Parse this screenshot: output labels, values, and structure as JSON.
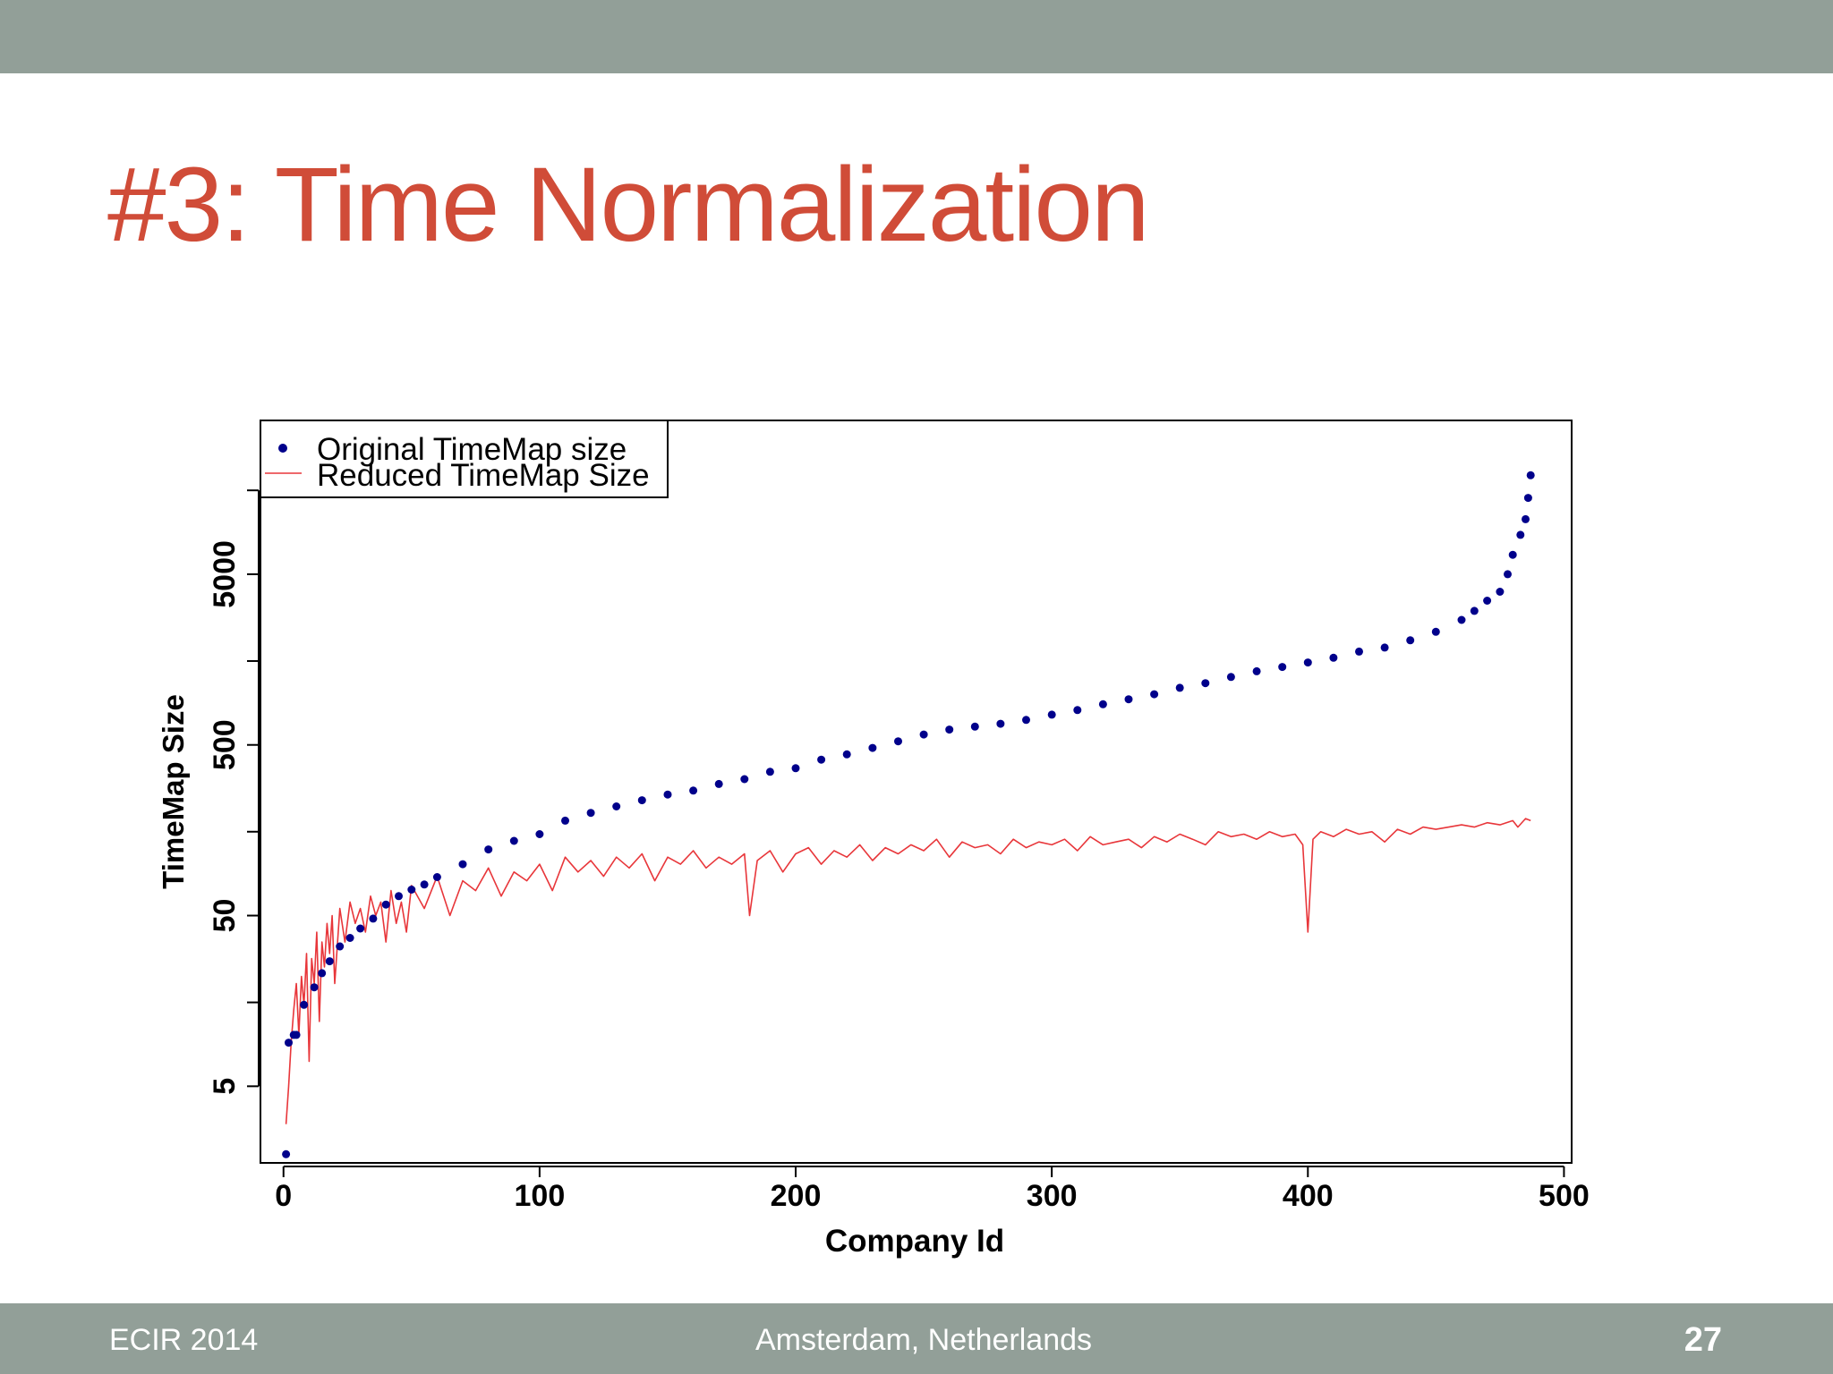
{
  "slide": {
    "title": "#3: Time Normalization",
    "footer_left": "ECIR 2014",
    "footer_center": "Amsterdam, Netherlands",
    "page_number": "27"
  },
  "colors": {
    "bar": "#929f98",
    "title": "#d04c38",
    "series_original": "#00008b",
    "series_reduced": "#e8363a"
  },
  "chart_data": {
    "type": "scatter",
    "xlabel": "Company Id",
    "ylabel": "TimeMap Size",
    "xlim": [
      -9,
      503
    ],
    "ylim_log10": [
      0.25,
      4.6
    ],
    "y_scale": "log",
    "x_ticks": [
      0,
      100,
      200,
      300,
      400,
      500
    ],
    "x_tick_labels": [
      "0",
      "100",
      "200",
      "300",
      "400",
      "500"
    ],
    "y_ticks": [
      5,
      50,
      500,
      5000
    ],
    "y_tick_labels": [
      "5",
      "50",
      "500",
      "5000"
    ],
    "legend_position": "top-left",
    "legend": [
      "Original TimeMap size",
      "Reduced TimeMap Size"
    ],
    "grid": false,
    "series": [
      {
        "name": "Original TimeMap size",
        "style": "points",
        "x": [
          1,
          2,
          4,
          5,
          8,
          12,
          15,
          18,
          22,
          26,
          30,
          35,
          40,
          45,
          50,
          55,
          60,
          70,
          80,
          90,
          100,
          110,
          120,
          130,
          140,
          150,
          160,
          170,
          180,
          190,
          200,
          210,
          220,
          230,
          240,
          250,
          260,
          270,
          280,
          290,
          300,
          310,
          320,
          330,
          340,
          350,
          360,
          370,
          380,
          390,
          400,
          410,
          420,
          430,
          440,
          450,
          460,
          465,
          470,
          475,
          478,
          480,
          483,
          485,
          486,
          487
        ],
        "y": [
          2,
          9,
          10,
          10,
          15,
          19,
          23,
          27,
          33,
          37,
          42,
          48,
          58,
          65,
          71,
          76,
          84,
          100,
          122,
          137,
          150,
          180,
          200,
          218,
          237,
          256,
          270,
          295,
          315,
          348,
          365,
          410,
          440,
          480,
          525,
          575,
          615,
          640,
          665,
          700,
          752,
          800,
          865,
          925,
          990,
          1080,
          1150,
          1250,
          1350,
          1430,
          1520,
          1620,
          1760,
          1860,
          2050,
          2300,
          2700,
          3050,
          3500,
          3950,
          5000,
          6500,
          8500,
          10500,
          14000,
          19000
        ]
      },
      {
        "name": "Reduced TimeMap Size",
        "style": "line",
        "x": [
          1,
          2,
          3,
          4,
          5,
          6,
          7,
          8,
          9,
          10,
          11,
          12,
          13,
          14,
          15,
          16,
          17,
          18,
          19,
          20,
          22,
          24,
          26,
          28,
          30,
          32,
          34,
          36,
          38,
          40,
          42,
          44,
          46,
          48,
          50,
          55,
          60,
          65,
          70,
          75,
          80,
          85,
          90,
          95,
          100,
          105,
          110,
          115,
          120,
          125,
          130,
          135,
          140,
          145,
          150,
          155,
          160,
          165,
          170,
          175,
          180,
          182,
          185,
          190,
          195,
          200,
          205,
          210,
          215,
          220,
          225,
          230,
          235,
          240,
          245,
          250,
          255,
          260,
          265,
          270,
          275,
          280,
          285,
          290,
          295,
          300,
          305,
          310,
          315,
          320,
          325,
          330,
          335,
          340,
          345,
          350,
          355,
          360,
          365,
          370,
          375,
          380,
          385,
          390,
          395,
          398,
          400,
          402,
          405,
          410,
          415,
          420,
          425,
          430,
          435,
          440,
          445,
          450,
          455,
          460,
          465,
          470,
          475,
          480,
          482,
          485,
          487
        ],
        "y": [
          3,
          5,
          9,
          14,
          20,
          10,
          22,
          15,
          30,
          7,
          28,
          20,
          40,
          12,
          35,
          25,
          45,
          30,
          50,
          20,
          55,
          35,
          60,
          45,
          55,
          40,
          65,
          50,
          60,
          35,
          70,
          45,
          60,
          40,
          75,
          55,
          85,
          50,
          80,
          70,
          95,
          65,
          90,
          80,
          100,
          70,
          110,
          90,
          105,
          85,
          110,
          95,
          115,
          80,
          110,
          100,
          120,
          95,
          110,
          100,
          115,
          50,
          105,
          120,
          90,
          115,
          125,
          100,
          120,
          110,
          130,
          105,
          125,
          115,
          130,
          120,
          140,
          110,
          135,
          125,
          130,
          115,
          140,
          125,
          135,
          130,
          140,
          120,
          145,
          130,
          135,
          140,
          125,
          145,
          135,
          150,
          140,
          130,
          155,
          145,
          150,
          140,
          155,
          145,
          150,
          130,
          40,
          140,
          155,
          145,
          160,
          150,
          155,
          135,
          160,
          150,
          165,
          160,
          165,
          170,
          165,
          175,
          170,
          180,
          165,
          185,
          180
        ]
      }
    ]
  }
}
